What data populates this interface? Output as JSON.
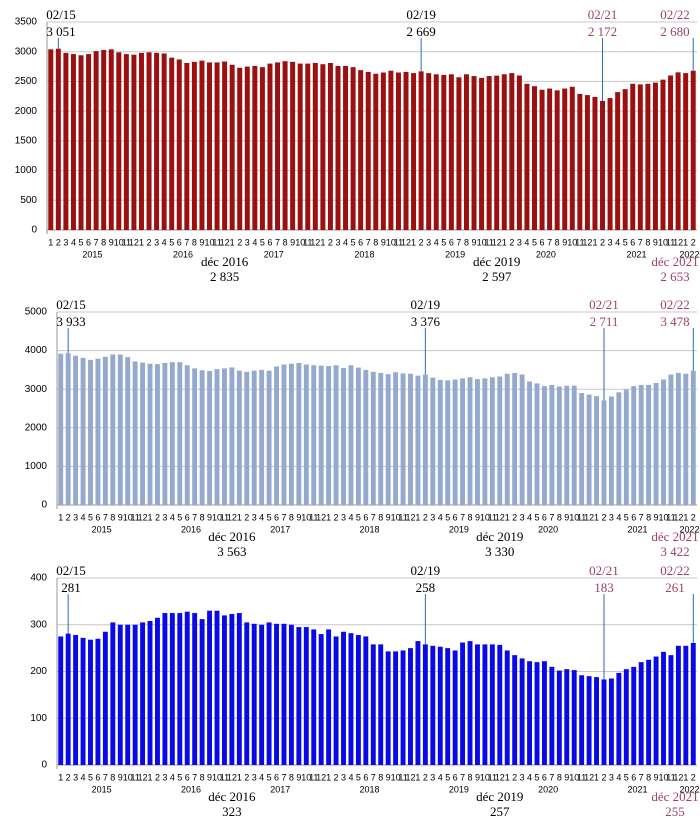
{
  "chart_data": [
    {
      "type": "bar",
      "color": "#9b1010",
      "categories": [
        "1",
        "2",
        "3",
        "4",
        "5",
        "6",
        "7",
        "8",
        "9",
        "10",
        "11",
        "12",
        "1",
        "2",
        "3",
        "4",
        "5",
        "6",
        "7",
        "8",
        "9",
        "10",
        "11",
        "12",
        "1",
        "2",
        "3",
        "4",
        "5",
        "6",
        "7",
        "8",
        "9",
        "10",
        "11",
        "12",
        "1",
        "2",
        "3",
        "4",
        "5",
        "6",
        "7",
        "8",
        "9",
        "10",
        "11",
        "12",
        "1",
        "2",
        "3",
        "4",
        "5",
        "6",
        "7",
        "8",
        "9",
        "10",
        "11",
        "12",
        "1",
        "2",
        "3",
        "4",
        "5",
        "6",
        "7",
        "8",
        "9",
        "10",
        "11",
        "12",
        "1",
        "2",
        "3",
        "4",
        "5",
        "6",
        "7",
        "8",
        "9",
        "10",
        "11",
        "12",
        "1",
        "2"
      ],
      "years": [
        "2015",
        "2016",
        "2017",
        "2018",
        "2019",
        "2020",
        "2021",
        "2022"
      ],
      "values": [
        3040,
        3051,
        2980,
        2960,
        2940,
        2960,
        3010,
        3030,
        3040,
        2990,
        2960,
        2950,
        2980,
        2990,
        2980,
        2970,
        2900,
        2870,
        2810,
        2830,
        2850,
        2820,
        2820,
        2835,
        2780,
        2730,
        2750,
        2760,
        2740,
        2800,
        2820,
        2840,
        2830,
        2800,
        2800,
        2810,
        2790,
        2810,
        2760,
        2760,
        2740,
        2690,
        2660,
        2630,
        2650,
        2680,
        2650,
        2660,
        2640,
        2669,
        2640,
        2620,
        2610,
        2620,
        2570,
        2620,
        2590,
        2560,
        2590,
        2597,
        2620,
        2640,
        2600,
        2460,
        2420,
        2360,
        2380,
        2350,
        2380,
        2410,
        2290,
        2270,
        2240,
        2172,
        2220,
        2320,
        2370,
        2460,
        2450,
        2460,
        2480,
        2530,
        2600,
        2653,
        2640,
        2680
      ],
      "ylim": [
        0,
        3500
      ],
      "yticks": [
        0,
        500,
        1000,
        1500,
        2000,
        2500,
        3000,
        3500
      ],
      "grid": true,
      "annotations": [
        {
          "date": "02/15",
          "value": {
            "value": 3051,
            "label": "3 051"
          },
          "color": "#000000"
        },
        {
          "date": "déc 2016",
          "value": {
            "value": 2835,
            "label": "2 835"
          },
          "color": "#000000"
        },
        {
          "date": "02/19",
          "value": {
            "value": 2669,
            "label": "2 669"
          },
          "color": "#000000"
        },
        {
          "date": "déc 2019",
          "value": {
            "value": 2597,
            "label": "2 597"
          },
          "color": "#000000"
        },
        {
          "date": "02/21",
          "value": {
            "value": 2172,
            "label": "2 172"
          },
          "color": "#a0406e"
        },
        {
          "date": "déc 2021",
          "value": {
            "value": 2653,
            "label": "2 653"
          },
          "color": "#a0406e"
        },
        {
          "date": "02/22",
          "value": {
            "value": 2680,
            "label": "2 680"
          },
          "color": "#a0406e"
        }
      ]
    },
    {
      "type": "bar",
      "color": "#94a9cd",
      "categories": [
        "1",
        "2",
        "3",
        "4",
        "5",
        "6",
        "7",
        "8",
        "9",
        "10",
        "11",
        "12",
        "1",
        "2",
        "3",
        "4",
        "5",
        "6",
        "7",
        "8",
        "9",
        "10",
        "11",
        "12",
        "1",
        "2",
        "3",
        "4",
        "5",
        "6",
        "7",
        "8",
        "9",
        "10",
        "11",
        "12",
        "1",
        "2",
        "3",
        "4",
        "5",
        "6",
        "7",
        "8",
        "9",
        "10",
        "11",
        "12",
        "1",
        "2",
        "3",
        "4",
        "5",
        "6",
        "7",
        "8",
        "9",
        "10",
        "11",
        "12",
        "1",
        "2",
        "3",
        "4",
        "5",
        "6",
        "7",
        "8",
        "9",
        "10",
        "11",
        "12",
        "1",
        "2",
        "3",
        "4",
        "5",
        "6",
        "7",
        "8",
        "9",
        "10",
        "11",
        "12",
        "1",
        "2"
      ],
      "years": [
        "2015",
        "2016",
        "2017",
        "2018",
        "2019",
        "2020",
        "2021",
        "2022"
      ],
      "values": [
        3920,
        3933,
        3870,
        3810,
        3760,
        3790,
        3840,
        3900,
        3900,
        3830,
        3720,
        3690,
        3660,
        3650,
        3680,
        3700,
        3700,
        3620,
        3540,
        3490,
        3470,
        3520,
        3540,
        3563,
        3480,
        3450,
        3480,
        3500,
        3480,
        3590,
        3640,
        3660,
        3680,
        3640,
        3620,
        3610,
        3600,
        3620,
        3550,
        3620,
        3560,
        3500,
        3450,
        3420,
        3390,
        3440,
        3410,
        3400,
        3350,
        3376,
        3300,
        3240,
        3230,
        3250,
        3280,
        3310,
        3260,
        3280,
        3310,
        3330,
        3400,
        3420,
        3380,
        3200,
        3150,
        3080,
        3110,
        3070,
        3090,
        3090,
        2900,
        2860,
        2820,
        2711,
        2810,
        2920,
        2990,
        3080,
        3110,
        3110,
        3160,
        3250,
        3380,
        3422,
        3400,
        3478
      ],
      "ylim": [
        0,
        5000
      ],
      "yticks": [
        0,
        1000,
        2000,
        3000,
        4000,
        5000
      ],
      "grid": true,
      "annotations": [
        {
          "date": "02/15",
          "value": {
            "value": 3933,
            "label": "3 933"
          },
          "color": "#000000"
        },
        {
          "date": "déc 2016",
          "value": {
            "value": 3563,
            "label": "3 563"
          },
          "color": "#000000"
        },
        {
          "date": "02/19",
          "value": {
            "value": 3376,
            "label": "3 376"
          },
          "color": "#000000"
        },
        {
          "date": "déc 2019",
          "value": {
            "value": 3330,
            "label": "3 330"
          },
          "color": "#000000"
        },
        {
          "date": "02/21",
          "value": {
            "value": 2711,
            "label": "2 711"
          },
          "color": "#a0406e"
        },
        {
          "date": "déc 2021",
          "value": {
            "value": 3422,
            "label": "3 422"
          },
          "color": "#a0406e"
        },
        {
          "date": "02/22",
          "value": {
            "value": 3478,
            "label": "3 478"
          },
          "color": "#a0406e"
        }
      ]
    },
    {
      "type": "bar",
      "color": "#0a0ae6",
      "categories": [
        "1",
        "2",
        "3",
        "4",
        "5",
        "6",
        "7",
        "8",
        "9",
        "10",
        "11",
        "12",
        "1",
        "2",
        "3",
        "4",
        "5",
        "6",
        "7",
        "8",
        "9",
        "10",
        "11",
        "12",
        "1",
        "2",
        "3",
        "4",
        "5",
        "6",
        "7",
        "8",
        "9",
        "10",
        "11",
        "12",
        "1",
        "2",
        "3",
        "4",
        "5",
        "6",
        "7",
        "8",
        "9",
        "10",
        "11",
        "12",
        "1",
        "2",
        "3",
        "4",
        "5",
        "6",
        "7",
        "8",
        "9",
        "10",
        "11",
        "12",
        "1",
        "2",
        "3",
        "4",
        "5",
        "6",
        "7",
        "8",
        "9",
        "10",
        "11",
        "12",
        "1",
        "2",
        "3",
        "4",
        "5",
        "6",
        "7",
        "8",
        "9",
        "10",
        "11",
        "12",
        "1",
        "2"
      ],
      "years": [
        "2015",
        "2016",
        "2017",
        "2018",
        "2019",
        "2020",
        "2021",
        "2022"
      ],
      "values": [
        275,
        281,
        278,
        272,
        268,
        270,
        285,
        305,
        300,
        300,
        300,
        305,
        308,
        315,
        325,
        325,
        325,
        328,
        325,
        312,
        330,
        330,
        320,
        323,
        325,
        305,
        302,
        300,
        305,
        302,
        302,
        300,
        295,
        295,
        290,
        280,
        290,
        275,
        285,
        282,
        278,
        275,
        258,
        258,
        243,
        243,
        245,
        250,
        265,
        258,
        255,
        253,
        250,
        245,
        262,
        265,
        258,
        258,
        258,
        257,
        245,
        235,
        228,
        222,
        220,
        222,
        210,
        202,
        205,
        203,
        192,
        190,
        188,
        183,
        185,
        197,
        205,
        210,
        220,
        225,
        232,
        242,
        235,
        255,
        255,
        261
      ],
      "ylim": [
        0,
        400
      ],
      "yticks": [
        0,
        100,
        200,
        300,
        400
      ],
      "grid": true,
      "annotations": [
        {
          "date": "02/15",
          "value": {
            "value": 281,
            "label": "281"
          },
          "color": "#000000"
        },
        {
          "date": "déc 2016",
          "value": {
            "value": 323,
            "label": "323"
          },
          "color": "#000000"
        },
        {
          "date": "02/19",
          "value": {
            "value": 258,
            "label": "258"
          },
          "color": "#000000"
        },
        {
          "date": "déc 2019",
          "value": {
            "value": 257,
            "label": "257"
          },
          "color": "#000000"
        },
        {
          "date": "02/21",
          "value": {
            "value": 183,
            "label": "183"
          },
          "color": "#a0406e"
        },
        {
          "date": "déc 2021",
          "value": {
            "value": 255,
            "label": "255"
          },
          "color": "#a0406e"
        },
        {
          "date": "02/22",
          "value": {
            "value": 261,
            "label": "261"
          },
          "color": "#a0406e"
        }
      ]
    }
  ]
}
